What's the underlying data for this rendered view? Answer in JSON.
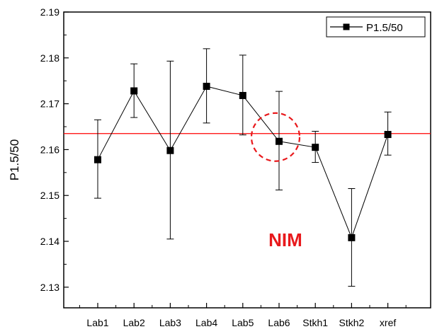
{
  "chart_data": {
    "type": "scatter",
    "title": "",
    "xlabel": "",
    "ylabel": "P1.5/50",
    "categories": [
      "Lab1",
      "Lab2",
      "Lab3",
      "Lab4",
      "Lab5",
      "Lab6",
      "Stkh1",
      "Stkh2",
      "xref"
    ],
    "series": [
      {
        "name": "P1.5/50",
        "values": [
          2.1578,
          2.1728,
          2.1598,
          2.1738,
          2.1718,
          2.1618,
          2.1605,
          2.1408,
          2.1633
        ],
        "error_upper": [
          2.1665,
          2.1787,
          2.1793,
          2.182,
          2.1806,
          2.1727,
          2.164,
          2.1515,
          2.1682
        ],
        "error_lower": [
          2.1494,
          2.167,
          2.1405,
          2.1658,
          2.1632,
          2.1512,
          2.1572,
          2.1302,
          2.1588
        ],
        "color": "#000000",
        "marker": "square",
        "connected": true
      }
    ],
    "yticks": [
      "2.13",
      "2.14",
      "2.15",
      "2.16",
      "2.17",
      "2.18",
      "2.19"
    ],
    "ylim": [
      2.1255,
      2.19
    ],
    "reference_line": {
      "y": 2.1635,
      "color": "#ff0000"
    },
    "highlight": {
      "category": "Lab6",
      "style": "dashed-circle",
      "color": "#e8191c"
    },
    "annotation": {
      "text": "NIM",
      "color": "#e8191c"
    },
    "legend": {
      "position": "top-right",
      "entries": [
        "P1.5/50"
      ]
    },
    "grid": false
  }
}
